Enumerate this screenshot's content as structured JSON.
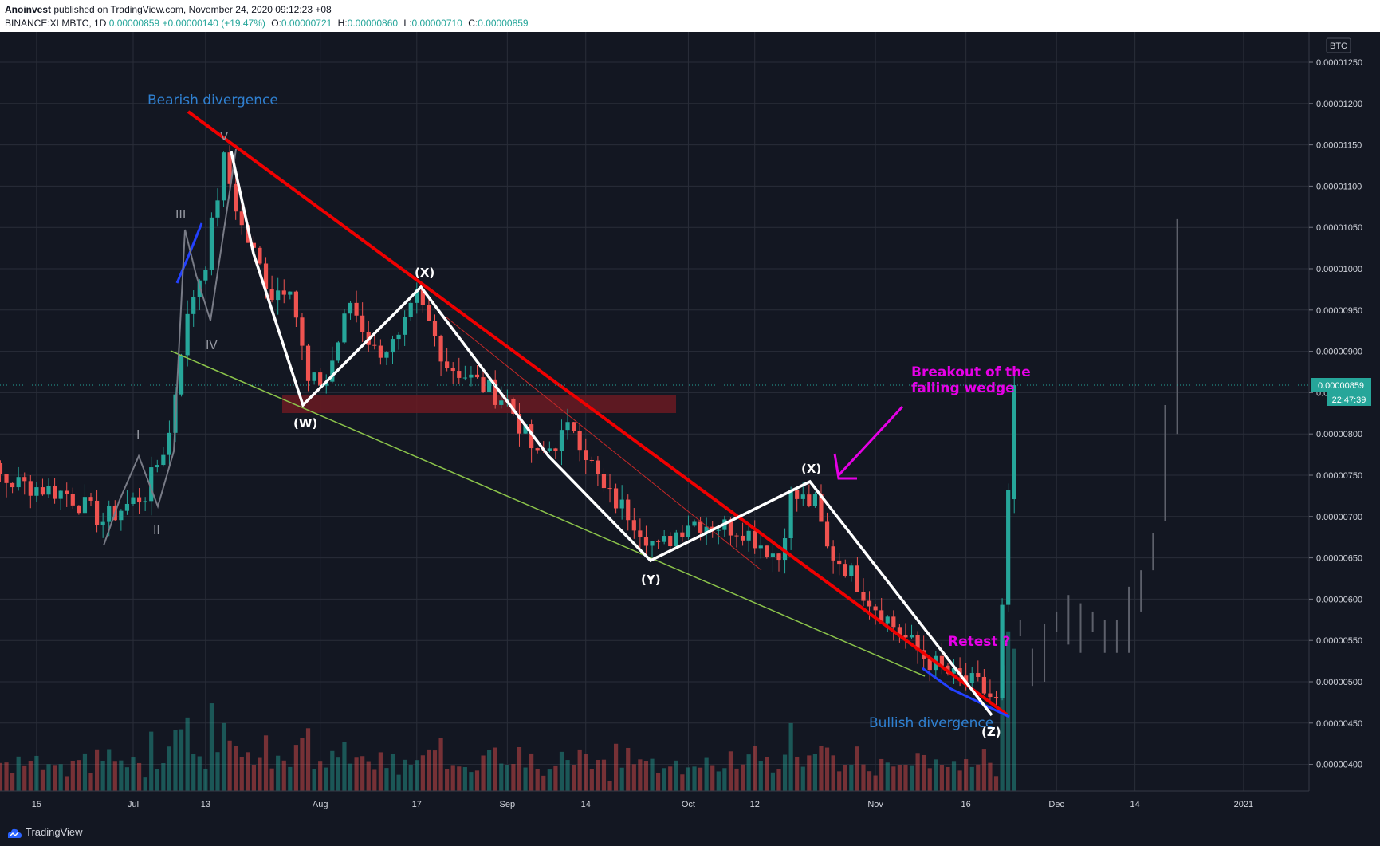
{
  "header": {
    "author": "Anoinvest",
    "published": "published on TradingView.com, November 24, 2020 09:12:23 +08",
    "symbol": "BINANCE:XLMBTC, 1D",
    "last": "0.00000859",
    "change": "+0.00000140 (+19.47%)",
    "o_label": "O:",
    "o": "0.00000721",
    "h_label": "H:",
    "h": "0.00000860",
    "l_label": "L:",
    "l": "0.00000710",
    "c_label": "C:",
    "c": "0.00000859"
  },
  "footer": {
    "brand": "TradingView"
  },
  "colors": {
    "bg": "#131722",
    "up": "#26a69a",
    "down": "#ef5350",
    "grid": "#2a2e39",
    "annotation_magenta": "#e600e6",
    "annotation_blue": "#2f80d1"
  },
  "chart_data": {
    "type": "candlestick",
    "symbol": "BINANCE:XLMBTC",
    "interval": "1D",
    "currency_label": "BTC",
    "y_tick_labels": [
      "0.00001250",
      "0.00001200",
      "0.00001150",
      "0.00001100",
      "0.00001050",
      "0.00001000",
      "0.00000950",
      "0.00000900",
      "0.00000850",
      "0.00000800",
      "0.00000750",
      "0.00000700",
      "0.00000650",
      "0.00000600",
      "0.00000550",
      "0.00000500",
      "0.00000450",
      "0.00000400"
    ],
    "x_tick_labels": [
      "15",
      "Jul",
      "13",
      "Aug",
      "17",
      "Sep",
      "14",
      "Oct",
      "12",
      "Nov",
      "16",
      "Dec",
      "14",
      "2021"
    ],
    "last_price_label": "0.00000859",
    "countdown_label": "22:47:39",
    "annotations": {
      "bearish_divergence": "Bearish divergence",
      "bullish_divergence": "Bullish divergence",
      "breakout": [
        "Breakout of the",
        "falling wedge"
      ],
      "retest": "Retest ?",
      "wave_w": "(W)",
      "wave_x1": "(X)",
      "wave_y": "(Y)",
      "wave_x2": "(X)",
      "wave_z": "(Z)",
      "wave_i": "I",
      "wave_ii": "II",
      "wave_iii": "III",
      "wave_iv": "IV",
      "wave_v": "V"
    },
    "path_anchors": [
      [
        "Jun 1",
        7.92
      ],
      [
        "Jun 10",
        7.43
      ],
      [
        "Jun 20",
        7.28
      ],
      [
        "Jun 26",
        6.95
      ],
      [
        "Jul 3",
        7.28
      ],
      [
        "Jul 7",
        8.0
      ],
      [
        "Jul 9",
        9.05
      ],
      [
        "Jul 11",
        9.7
      ],
      [
        "Jul 13",
        10.1
      ],
      [
        "Jul 16",
        11.3
      ],
      [
        "Jul 19",
        10.5
      ],
      [
        "Jul 24",
        9.7
      ],
      [
        "Jul 27",
        9.85
      ],
      [
        "Jul 30",
        8.6
      ],
      [
        "Aug 2",
        8.65
      ],
      [
        "Aug 6",
        9.6
      ],
      [
        "Aug 10",
        9.0
      ],
      [
        "Aug 14",
        9.1
      ],
      [
        "Aug 17",
        9.65
      ],
      [
        "Aug 22",
        8.85
      ],
      [
        "Aug 27",
        8.62
      ],
      [
        "Sep 1",
        8.4
      ],
      [
        "Sep 6",
        7.7
      ],
      [
        "Sep 12",
        8.1
      ],
      [
        "Sep 17",
        7.3
      ],
      [
        "Sep 21",
        7.05
      ],
      [
        "Sep 26",
        6.6
      ],
      [
        "Oct 1",
        6.95
      ],
      [
        "Oct 10",
        6.85
      ],
      [
        "Oct 16",
        6.5
      ],
      [
        "Oct 18",
        7.25
      ],
      [
        "Oct 22",
        7.15
      ],
      [
        "Oct 24",
        6.6
      ],
      [
        "Oct 27",
        6.4
      ],
      [
        "Oct 31",
        6.0
      ],
      [
        "Nov 5",
        5.6
      ],
      [
        "Nov 9",
        5.3
      ],
      [
        "Nov 14",
        5.05
      ],
      [
        "Nov 18",
        4.95
      ],
      [
        "Nov 21",
        4.75
      ],
      [
        "Nov 22",
        5.85
      ],
      [
        "Nov 23",
        7.21
      ],
      [
        "Nov 24",
        8.59
      ]
    ],
    "price_unit": "1e-6 BTC"
  }
}
